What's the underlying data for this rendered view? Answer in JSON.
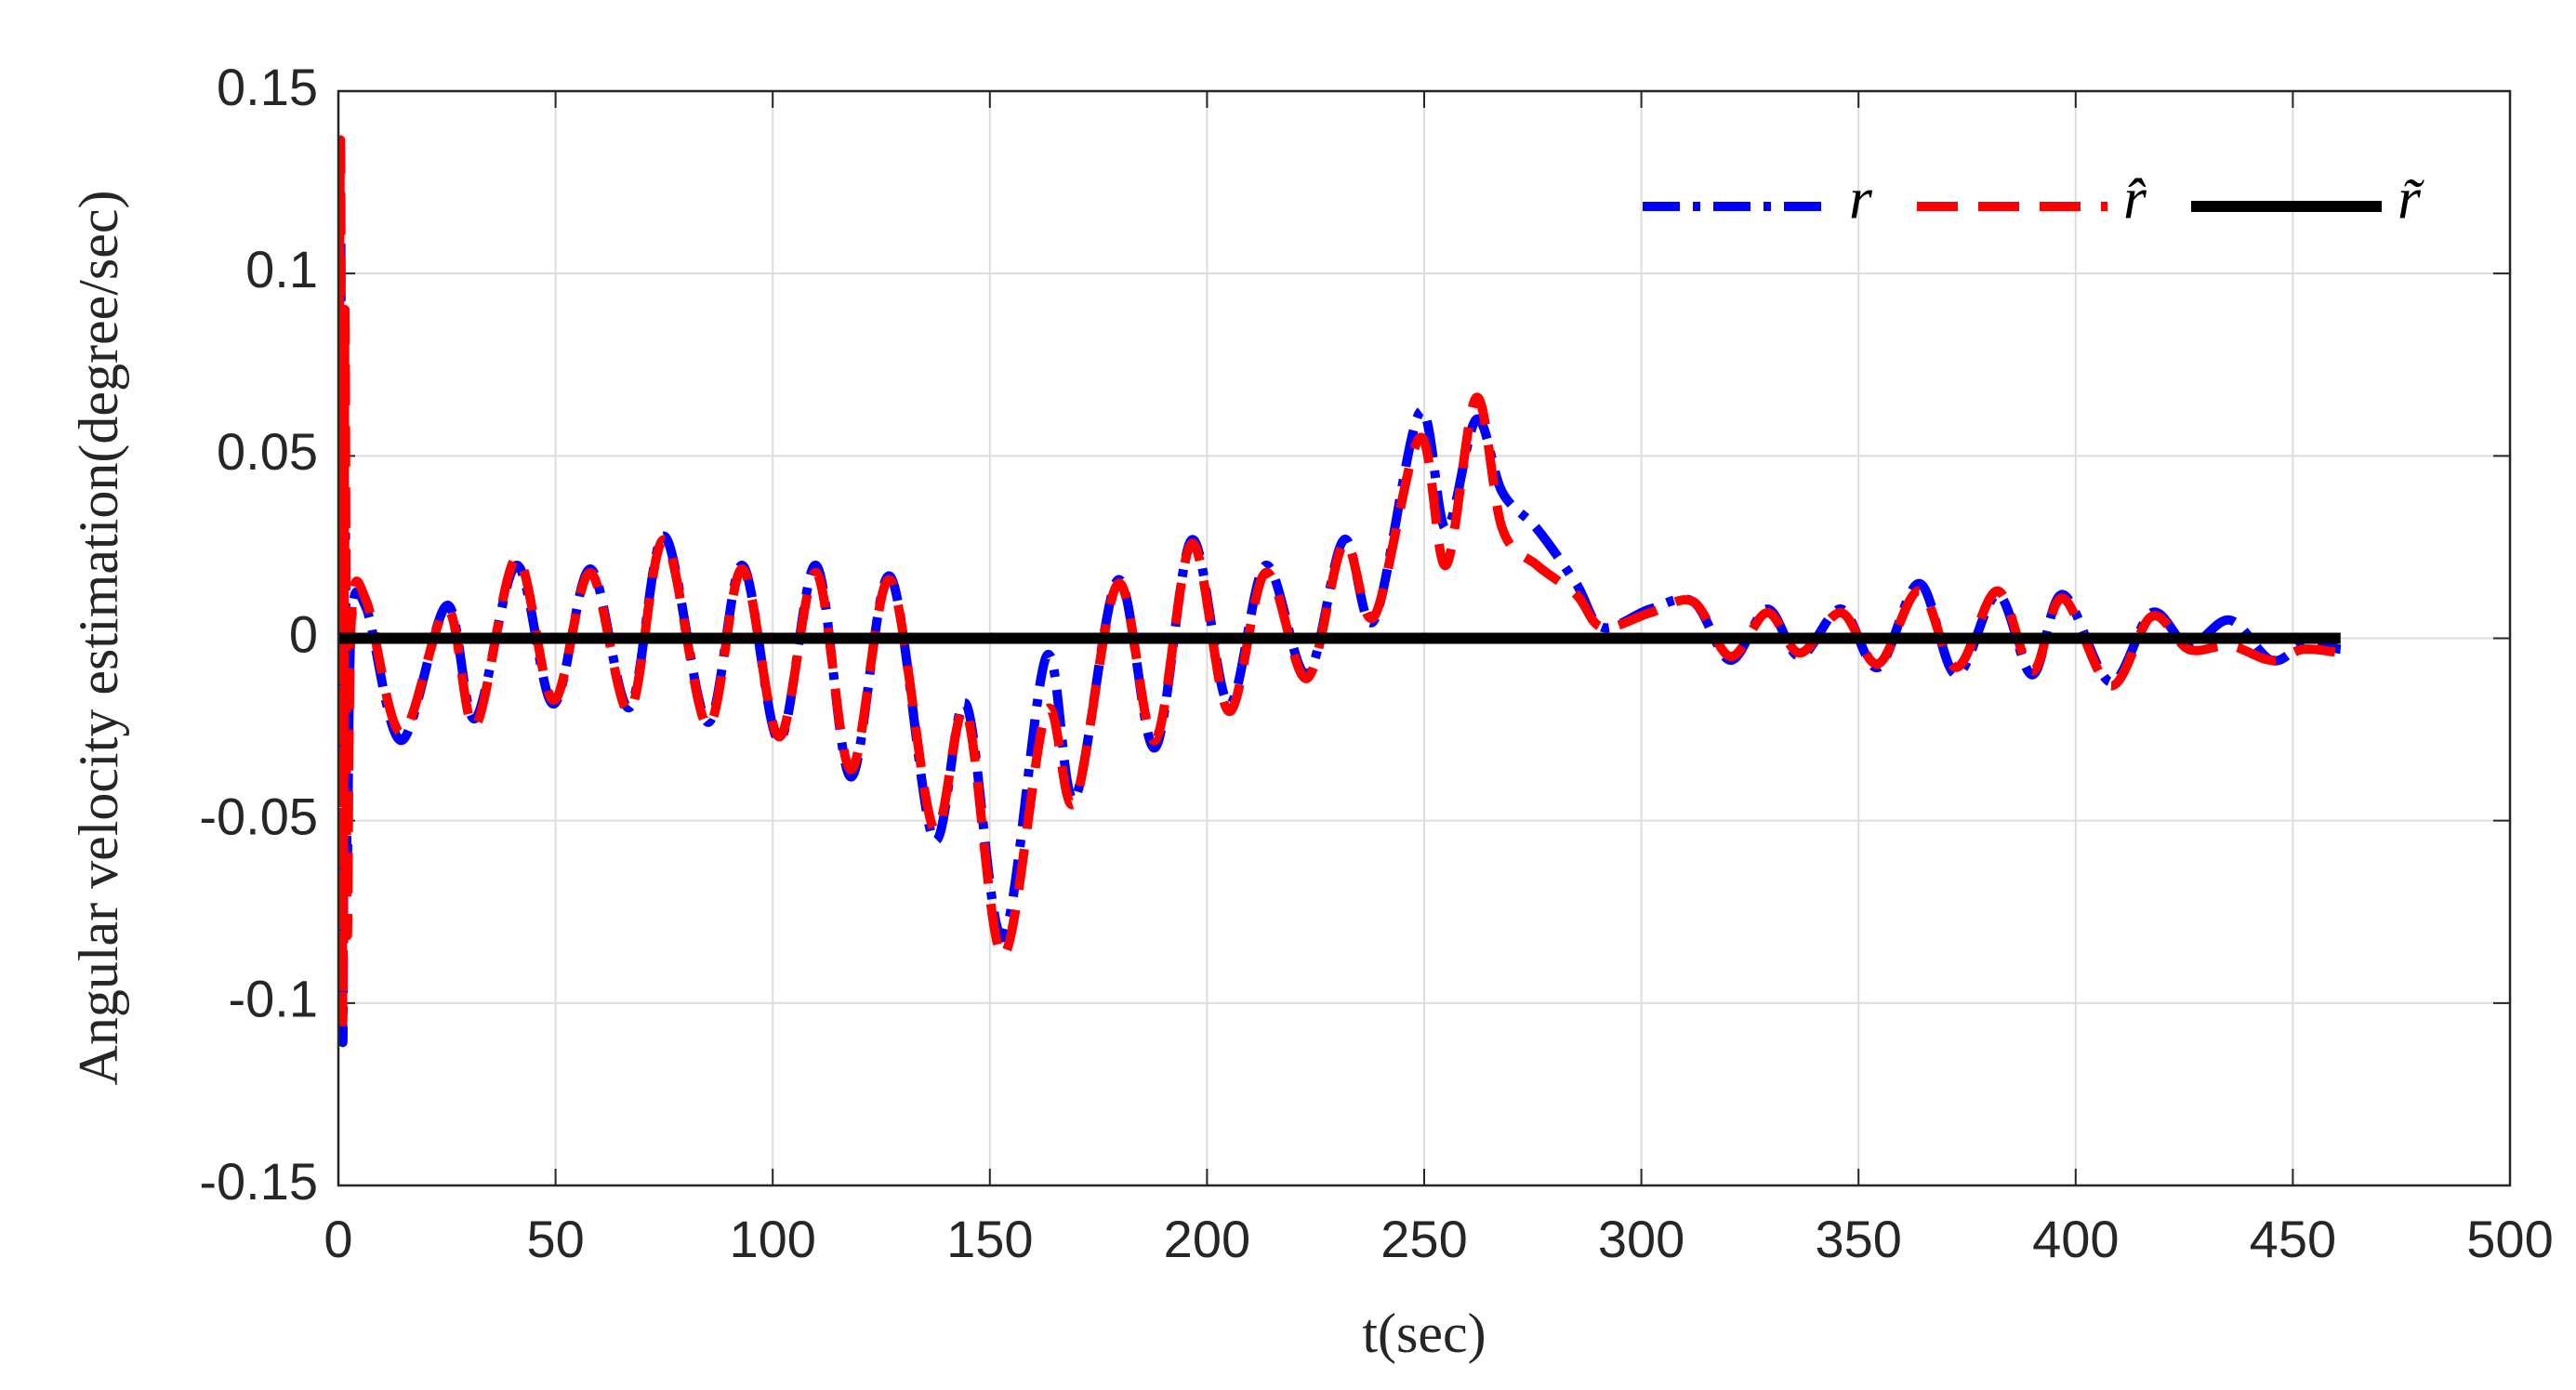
{
  "chart_data": {
    "type": "line",
    "xlabel": "t(sec)",
    "ylabel": "Angular velocity estimation(degree/sec)",
    "x": [
      0,
      0.5,
      1,
      1.5,
      2,
      3,
      6.5,
      14.5,
      25,
      31.5,
      41,
      49.5,
      58,
      67,
      75,
      85,
      93,
      101.5,
      110,
      118,
      127,
      137,
      144.5,
      153,
      163,
      169.5,
      179.5,
      188,
      196.5,
      205,
      213.5,
      223,
      231.5,
      238.5,
      249,
      255,
      262,
      268,
      276,
      285,
      291,
      302,
      312,
      320.5,
      329,
      336.5,
      346,
      354.5,
      364,
      372.5,
      382,
      390,
      397,
      408,
      417.5,
      426,
      435.5,
      445,
      452.5,
      461
    ],
    "series": [
      {
        "name": "r",
        "color": "#0000ff",
        "style": "dashdot",
        "values": [
          0,
          0.12,
          -0.11,
          0.04,
          -0.06,
          0.005,
          0.008,
          -0.028,
          0.009,
          -0.022,
          0.02,
          -0.018,
          0.019,
          -0.019,
          0.028,
          -0.023,
          0.02,
          -0.028,
          0.02,
          -0.038,
          0.017,
          -0.055,
          -0.018,
          -0.082,
          -0.005,
          -0.044,
          0.016,
          -0.03,
          0.027,
          -0.018,
          0.02,
          -0.01,
          0.027,
          0.005,
          0.062,
          0.03,
          0.06,
          0.04,
          0.03,
          0.015,
          0.003,
          0.008,
          0.01,
          -0.006,
          0.008,
          -0.005,
          0.008,
          -0.008,
          0.015,
          -0.01,
          0.012,
          -0.01,
          0.012,
          -0.012,
          0.007,
          -0.002,
          0.005,
          -0.006,
          -0.002,
          -0.003
        ]
      },
      {
        "name": "r̂",
        "color": "#ff0000",
        "style": "dashed",
        "values": [
          0,
          0.135,
          -0.105,
          0.09,
          -0.08,
          0.006,
          0.01,
          -0.026,
          0.008,
          -0.024,
          0.022,
          -0.017,
          0.018,
          -0.02,
          0.027,
          -0.024,
          0.019,
          -0.027,
          0.018,
          -0.036,
          0.016,
          -0.052,
          -0.02,
          -0.087,
          -0.02,
          -0.045,
          0.015,
          -0.028,
          0.026,
          -0.02,
          0.018,
          -0.011,
          0.026,
          0.006,
          0.055,
          0.02,
          0.066,
          0.03,
          0.02,
          0.012,
          0.003,
          0.007,
          0.01,
          -0.005,
          0.007,
          -0.004,
          0.007,
          -0.007,
          0.013,
          -0.008,
          0.013,
          -0.009,
          0.011,
          -0.013,
          0.006,
          -0.003,
          -0.002,
          -0.006,
          -0.003,
          -0.004
        ]
      },
      {
        "name": "r̃",
        "color": "#000000",
        "style": "solid",
        "values": [
          0,
          0,
          0,
          0,
          0,
          0,
          0,
          0,
          0,
          0,
          0,
          0,
          0,
          0,
          0,
          0,
          0,
          0,
          0,
          0,
          0,
          0,
          0,
          0,
          0,
          0,
          0,
          0,
          0,
          0,
          0,
          0,
          0,
          0,
          0,
          0,
          0,
          0,
          0,
          0,
          0,
          0,
          0,
          0,
          0,
          0,
          0,
          0,
          0,
          0,
          0,
          0,
          0,
          0,
          0,
          0,
          0,
          0,
          0,
          0
        ]
      }
    ],
    "xlim": [
      0,
      500
    ],
    "xticks": [
      0,
      50,
      100,
      150,
      200,
      250,
      300,
      350,
      400,
      450,
      500
    ],
    "ylim": [
      -0.15,
      0.15
    ],
    "yticks": [
      -0.15,
      -0.1,
      -0.05,
      0,
      0.05,
      0.1,
      0.15
    ],
    "grid": true,
    "legend": "upper right"
  }
}
